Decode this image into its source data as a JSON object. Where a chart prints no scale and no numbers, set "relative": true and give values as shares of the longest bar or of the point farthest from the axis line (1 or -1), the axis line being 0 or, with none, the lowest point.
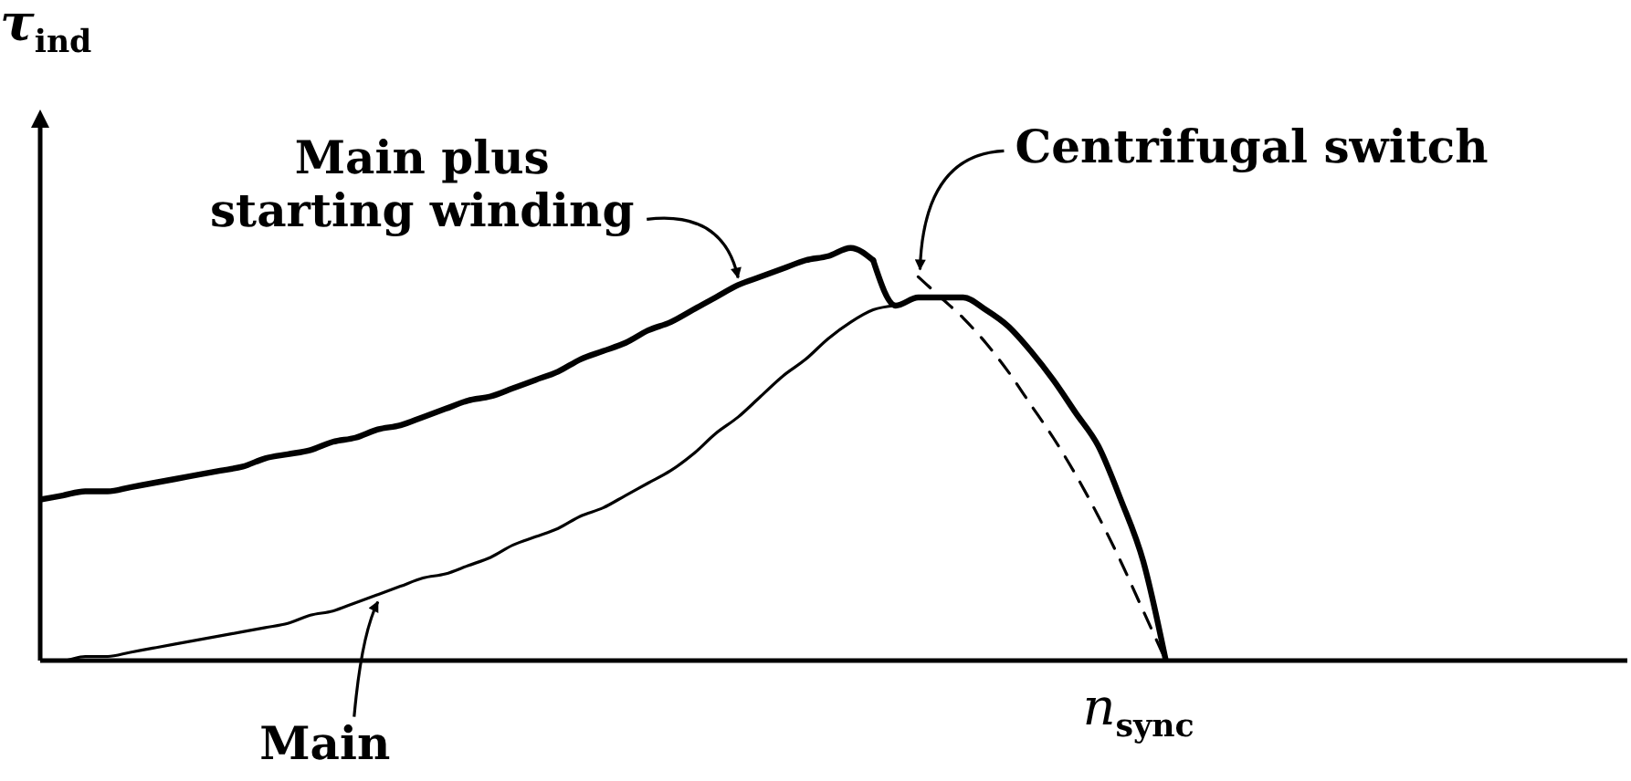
{
  "chart_data": {
    "type": "line",
    "ylabel": "τ$_{ind}$",
    "relative": true,
    "categories": [
      null,
      null,
      null,
      null,
      null,
      null,
      null,
      null,
      null,
      null,
      null,
      null,
      null,
      null,
      null,
      null,
      null,
      null,
      null,
      null,
      null,
      null,
      null,
      null,
      null,
      null,
      null,
      null,
      null,
      null,
      null,
      null,
      null,
      null,
      null,
      null,
      null,
      null,
      null,
      null,
      null,
      null,
      null,
      null,
      null,
      null,
      null,
      null,
      null,
      null,
      null
    ],
    "series": [
      {
        "name": "Main plus starting winding",
        "color": "#000000",
        "values": [
          0.39,
          0.4,
          0.41,
          0.41,
          0.42,
          0.43,
          0.44,
          0.45,
          0.46,
          0.47,
          0.49,
          0.5,
          0.51,
          0.53,
          0.54,
          0.56,
          0.57,
          0.59,
          0.61,
          0.63,
          0.64,
          0.66,
          0.68,
          0.7,
          0.73,
          0.75,
          0.77,
          0.8,
          0.82,
          0.85,
          0.88,
          0.91,
          0.93,
          0.95,
          0.97,
          0.98,
          1,
          0.97,
          null,
          null,
          null,
          null,
          null,
          null,
          null,
          null,
          null,
          null,
          null,
          null,
          null
        ]
      },
      {
        "name": "Main",
        "color": "#000000",
        "values": [
          0,
          0,
          0.01,
          0.01,
          0.02,
          0.03,
          0.04,
          0.05,
          0.06,
          0.07,
          0.08,
          0.09,
          0.11,
          0.12,
          0.14,
          0.16,
          0.18,
          0.2,
          0.21,
          0.23,
          0.25,
          0.28,
          0.3,
          0.32,
          0.35,
          0.37,
          0.4,
          0.43,
          0.46,
          0.5,
          0.55,
          0.59,
          0.64,
          0.69,
          0.73,
          0.78,
          0.82,
          0.85,
          0.86,
          null,
          null,
          null,
          null,
          null,
          null,
          null,
          null,
          null,
          null,
          null,
          null
        ]
      },
      {
        "color": "#000000",
        "values": [
          null,
          null,
          null,
          null,
          null,
          null,
          null,
          null,
          null,
          null,
          null,
          null,
          null,
          null,
          null,
          null,
          null,
          null,
          null,
          null,
          null,
          null,
          null,
          null,
          null,
          null,
          null,
          null,
          null,
          null,
          null,
          null,
          null,
          null,
          null,
          null,
          null,
          0.97,
          0.86,
          0.88,
          0.88,
          0.88,
          0.85,
          0.81,
          0.75,
          0.68,
          0.6,
          0.52,
          0.39,
          0.24,
          0
        ]
      },
      {
        "color": "#000000",
        "line_style": "dashed",
        "values": [
          null,
          null,
          null,
          null,
          null,
          null,
          null,
          null,
          null,
          null,
          null,
          null,
          null,
          null,
          null,
          null,
          null,
          null,
          null,
          null,
          null,
          null,
          null,
          null,
          null,
          null,
          null,
          null,
          null,
          null,
          null,
          null,
          null,
          null,
          null,
          null,
          null,
          null,
          null,
          0.93,
          0.88,
          0.83,
          0.77,
          0.7,
          0.62,
          0.54,
          0.45,
          0.35,
          0.24,
          0.12,
          0
        ]
      }
    ],
    "annotations": [
      "Centrifugal switch",
      "n$_{sync}$"
    ]
  }
}
